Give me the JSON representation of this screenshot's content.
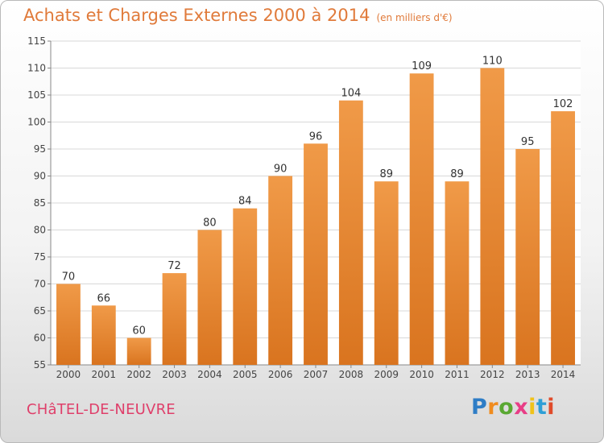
{
  "title": "Achats et Charges Externes 2000 à 2014",
  "subtitle": "(en milliers d'€)",
  "place": "CHâTEL-DE-NEUVRE",
  "logo": {
    "letters": [
      "P",
      "r",
      "o",
      "x",
      "i",
      "t",
      "i"
    ],
    "colors": [
      "#2e7dc6",
      "#f08c1f",
      "#59a832",
      "#e83d86",
      "#f0c21a",
      "#2e9fd6",
      "#e04b2a"
    ]
  },
  "colors": {
    "bar": "#f09a48",
    "bar_dark": "#d9741f",
    "grid": "#d8d8d8"
  },
  "chart_data": {
    "type": "bar",
    "categories": [
      "2000",
      "2001",
      "2002",
      "2003",
      "2004",
      "2005",
      "2006",
      "2007",
      "2008",
      "2009",
      "2010",
      "2011",
      "2012",
      "2013",
      "2014"
    ],
    "values": [
      70,
      66,
      60,
      72,
      80,
      84,
      90,
      96,
      104,
      89,
      109,
      89,
      110,
      95,
      102
    ],
    "ylim": [
      55,
      115
    ],
    "yticks": [
      55,
      60,
      65,
      70,
      75,
      80,
      85,
      90,
      95,
      100,
      105,
      110,
      115
    ],
    "grid": true
  }
}
